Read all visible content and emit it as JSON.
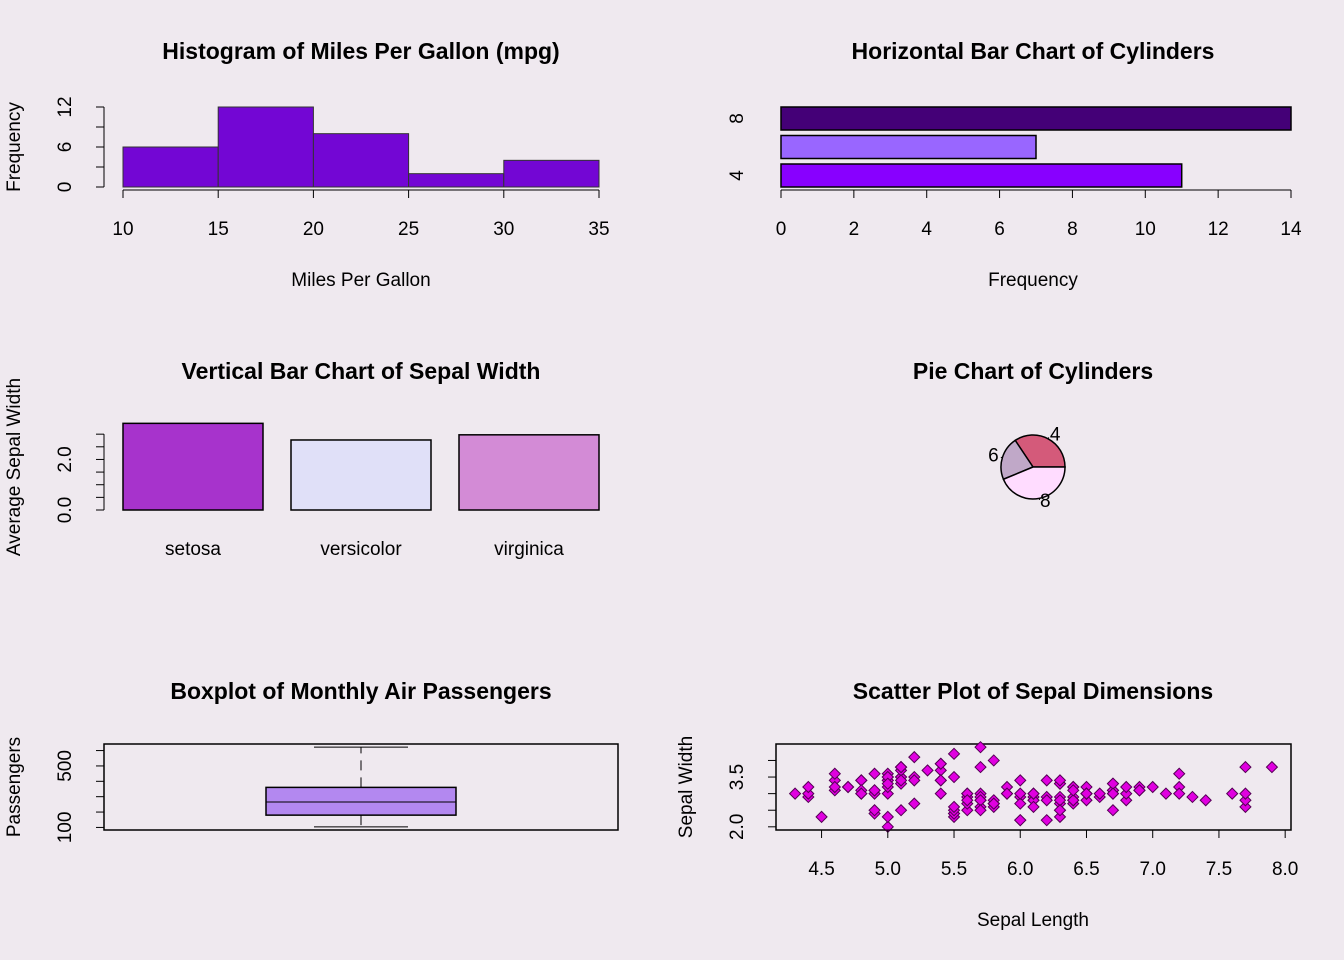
{
  "chart_data": [
    {
      "type": "histogram",
      "title": "Histogram of Miles Per Gallon (mpg)",
      "x_label": "Miles Per Gallon",
      "y_label": "Frequency",
      "bins": [
        10,
        15,
        20,
        25,
        30,
        35
      ],
      "values": [
        6,
        12,
        8,
        2,
        4
      ],
      "color": "#7306d4",
      "xlim": [
        10,
        35
      ],
      "xticks": [
        10,
        15,
        20,
        25,
        30,
        35
      ],
      "ylim": [
        0,
        12
      ],
      "yticks": [
        0,
        {
          "value": 3,
          "label": null
        },
        6,
        {
          "value": 9,
          "label": null
        },
        12
      ]
    },
    {
      "type": "bar",
      "horizontal": true,
      "title": "Horizontal Bar Chart of Cylinders",
      "x_label": "Frequency",
      "categories": [
        "4",
        null,
        "8"
      ],
      "values": [
        11,
        7,
        14
      ],
      "colors": [
        "#8800ff",
        "#9966ff",
        "#440077"
      ],
      "xlim": [
        0,
        14
      ],
      "xticks": [
        0,
        2,
        4,
        6,
        8,
        10,
        12,
        14
      ]
    },
    {
      "type": "bar",
      "horizontal": false,
      "title": "Vertical Bar Chart of Sepal Width",
      "y_label": "Average Sepal Width",
      "categories": [
        "setosa",
        "versicolor",
        "virginica"
      ],
      "values": [
        3.428,
        2.77,
        2.974
      ],
      "colors": [
        "#a733cc",
        "#e0e0f8",
        "#d38bd6"
      ],
      "ylim": [
        0,
        3.6
      ],
      "yticks": [
        {
          "value": 0,
          "label": "0.0"
        },
        {
          "value": 0.5,
          "label": null
        },
        {
          "value": 1,
          "label": null
        },
        {
          "value": 1.5,
          "label": null
        },
        {
          "value": 2,
          "label": "2.0"
        },
        {
          "value": 2.5,
          "label": null
        },
        {
          "value": 3,
          "label": null
        }
      ]
    },
    {
      "type": "pie",
      "title": "Pie Chart of Cylinders",
      "categories": [
        "4",
        "6",
        "8"
      ],
      "values": [
        11,
        7,
        14
      ],
      "colors": [
        "#d45a7a",
        "#c0a8c8",
        "#ffdcff"
      ]
    },
    {
      "type": "box",
      "title": "Boxplot of Monthly Air Passengers",
      "y_label": "Passengers",
      "min": 104,
      "q1": 180,
      "median": 265.5,
      "q3": 360.5,
      "max": 622,
      "color": "#b388f0",
      "ylim": [
        83.28,
        642.72
      ],
      "yticks": [
        100,
        {
          "value": 200,
          "label": null
        },
        {
          "value": 300,
          "label": null
        },
        {
          "value": 400,
          "label": null
        },
        500,
        {
          "value": 600,
          "label": null
        }
      ]
    },
    {
      "type": "scatter",
      "title": "Scatter Plot of Sepal Dimensions",
      "x_label": "Sepal Length",
      "y_label": "Sepal Width",
      "color": "#e000e0",
      "xlim": [
        4.156,
        8.044
      ],
      "ylim": [
        1.904,
        4.496
      ],
      "xticks": [
        4.5,
        {
          "value": 5,
          "label": "5.0"
        },
        5.5,
        {
          "value": 6,
          "label": "6.0"
        },
        6.5,
        {
          "value": 7,
          "label": "7.0"
        },
        7.5,
        {
          "value": 8,
          "label": "8.0"
        }
      ],
      "yticks": [
        {
          "value": 2,
          "label": "2.0"
        },
        {
          "value": 2.5,
          "label": null
        },
        {
          "value": 3,
          "label": null
        },
        3.5,
        {
          "value": 4,
          "label": null
        }
      ],
      "x": [
        5.1,
        4.9,
        4.7,
        4.6,
        5.0,
        5.4,
        4.6,
        5.0,
        4.4,
        4.9,
        5.4,
        4.8,
        4.8,
        4.3,
        5.8,
        5.7,
        5.4,
        5.1,
        5.7,
        5.1,
        5.4,
        5.1,
        4.6,
        5.1,
        4.8,
        5.0,
        5.0,
        5.2,
        5.2,
        4.7,
        4.8,
        5.4,
        5.2,
        5.5,
        4.9,
        5.0,
        5.5,
        4.9,
        4.4,
        5.1,
        5.0,
        4.5,
        4.4,
        5.0,
        5.1,
        4.8,
        5.1,
        4.6,
        5.3,
        5.0,
        7.0,
        6.4,
        6.9,
        5.5,
        6.5,
        5.7,
        6.3,
        4.9,
        6.6,
        5.2,
        5.0,
        5.9,
        6.0,
        6.1,
        5.6,
        6.7,
        5.6,
        5.8,
        6.2,
        5.6,
        5.9,
        6.1,
        6.3,
        6.1,
        6.4,
        6.6,
        6.8,
        6.7,
        6.0,
        5.7,
        5.5,
        5.5,
        5.8,
        6.0,
        5.4,
        6.0,
        6.7,
        6.3,
        5.6,
        5.5,
        5.5,
        6.1,
        5.8,
        5.0,
        5.6,
        5.7,
        5.7,
        6.2,
        5.1,
        5.7,
        6.3,
        5.8,
        7.1,
        6.3,
        6.5,
        7.6,
        4.9,
        7.3,
        6.7,
        7.2,
        6.5,
        6.4,
        6.8,
        5.7,
        5.8,
        6.4,
        6.5,
        7.7,
        7.7,
        6.0,
        6.9,
        5.6,
        7.7,
        6.3,
        6.7,
        7.2,
        6.2,
        6.1,
        6.4,
        7.2,
        7.4,
        7.9,
        6.4,
        6.3,
        6.1,
        7.7,
        6.3,
        6.4,
        6.0,
        6.9,
        6.7,
        6.9,
        5.8,
        6.8,
        6.7,
        6.7,
        6.3,
        6.5,
        6.2,
        5.9
      ],
      "values": [
        3.5,
        3.0,
        3.2,
        3.1,
        3.6,
        3.9,
        3.4,
        3.4,
        2.9,
        3.1,
        3.7,
        3.4,
        3.0,
        3.0,
        4.0,
        4.4,
        3.9,
        3.5,
        3.8,
        3.8,
        3.4,
        3.7,
        3.6,
        3.3,
        3.4,
        3.0,
        3.4,
        3.5,
        3.4,
        3.2,
        3.1,
        3.4,
        4.1,
        4.2,
        3.1,
        3.2,
        3.5,
        3.6,
        3.0,
        3.4,
        3.5,
        2.3,
        3.2,
        3.5,
        3.8,
        3.0,
        3.8,
        3.2,
        3.7,
        3.3,
        3.2,
        3.2,
        3.1,
        2.3,
        2.8,
        2.8,
        3.3,
        2.4,
        2.9,
        2.7,
        2.0,
        3.0,
        2.2,
        2.9,
        2.9,
        3.1,
        3.0,
        2.7,
        2.2,
        2.5,
        3.2,
        2.8,
        2.5,
        2.8,
        2.9,
        3.0,
        2.8,
        3.0,
        2.9,
        2.6,
        2.4,
        2.4,
        2.7,
        2.7,
        3.0,
        3.4,
        3.1,
        2.3,
        3.0,
        2.5,
        2.6,
        3.0,
        2.6,
        2.3,
        2.7,
        3.0,
        2.9,
        2.9,
        2.5,
        2.8,
        3.3,
        2.7,
        3.0,
        2.9,
        3.0,
        3.0,
        2.5,
        2.9,
        2.5,
        3.6,
        3.2,
        2.7,
        3.0,
        2.5,
        2.8,
        3.2,
        3.0,
        3.8,
        2.6,
        2.2,
        3.2,
        2.8,
        2.8,
        2.7,
        3.3,
        3.2,
        2.8,
        3.0,
        2.8,
        3.0,
        2.8,
        3.8,
        2.8,
        2.8,
        2.6,
        3.0,
        3.4,
        3.1,
        3.0,
        3.1,
        3.1,
        3.1,
        2.7,
        3.2,
        3.3,
        3.0,
        2.5,
        3.0,
        3.4,
        3.0
      ]
    }
  ]
}
